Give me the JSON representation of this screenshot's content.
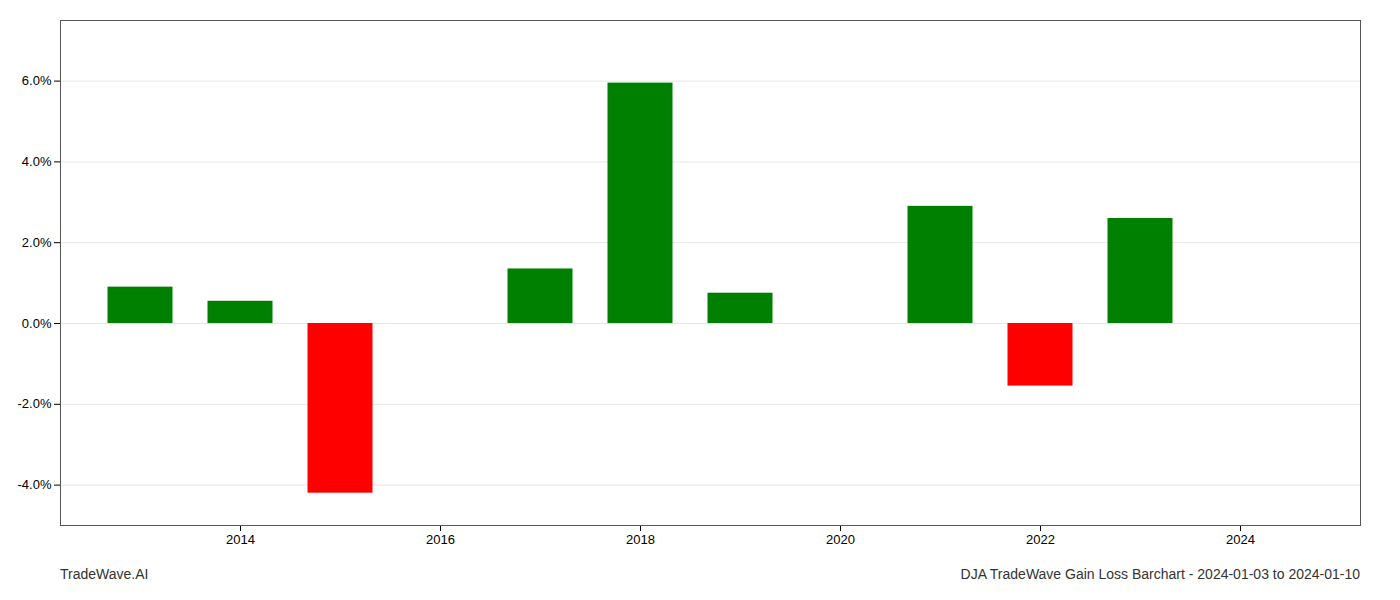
{
  "chart_data": {
    "type": "bar",
    "title": "DJA TradeWave Gain Loss Barchart - 2024-01-03 to 2024-01-10",
    "annotations": [
      "TradeWave.AI"
    ],
    "x": [
      2013,
      2014,
      2015,
      2017,
      2018,
      2019,
      2021,
      2022,
      2023
    ],
    "values": [
      0.009,
      0.0055,
      -0.042,
      0.0135,
      0.0595,
      0.0075,
      0.029,
      -0.0155,
      0.026
    ],
    "colors": [
      "#008000",
      "#008000",
      "#ff0000",
      "#008000",
      "#008000",
      "#008000",
      "#008000",
      "#ff0000",
      "#008000"
    ],
    "xlim": [
      2012.2,
      2025.2
    ],
    "xticks": [
      2014,
      2016,
      2018,
      2020,
      2022,
      2024
    ],
    "ylim": [
      -0.05,
      0.075
    ],
    "yticks": [
      {
        "value": -0.04,
        "label": "-4.0%"
      },
      {
        "value": -0.02,
        "label": "-2.0%"
      },
      {
        "value": 0.0,
        "label": "0.0%"
      },
      {
        "value": 0.02,
        "label": "2.0%"
      },
      {
        "value": 0.04,
        "label": "4.0%"
      },
      {
        "value": 0.06,
        "label": "6.0%"
      }
    ],
    "grid": true
  }
}
